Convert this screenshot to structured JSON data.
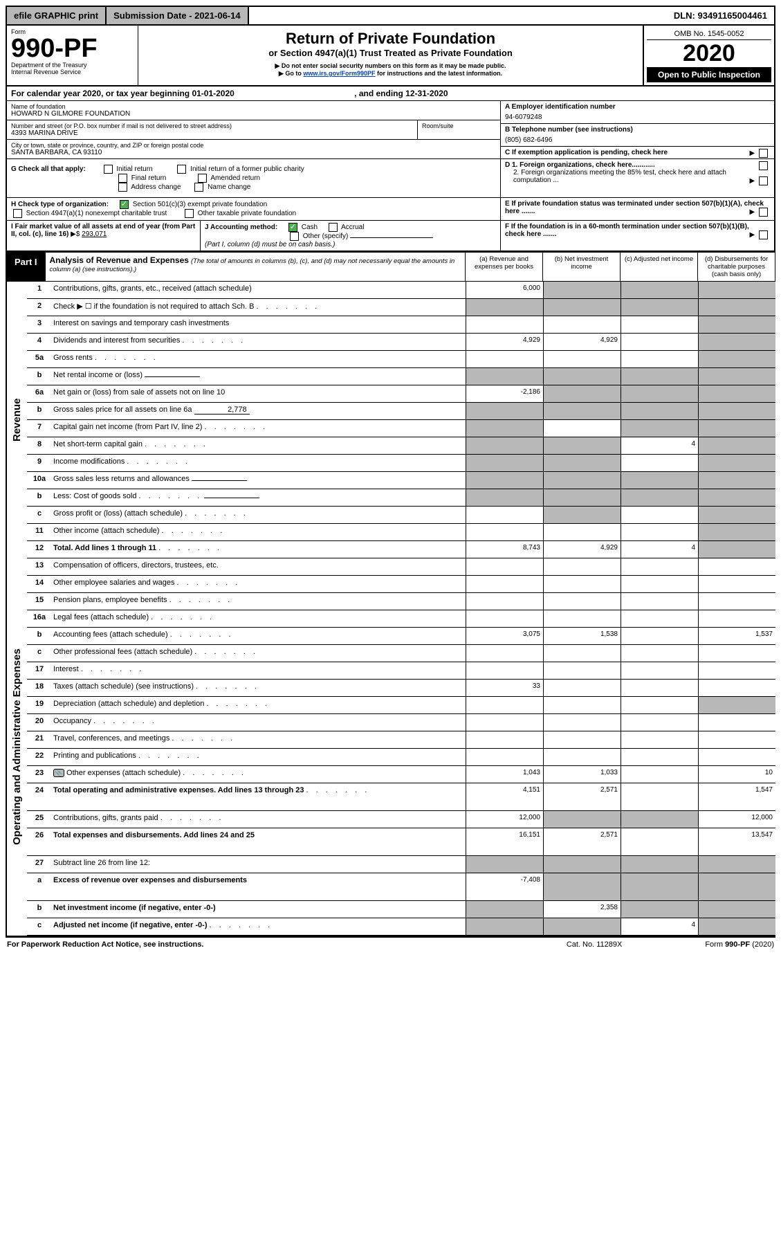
{
  "topbar": {
    "efile": "efile GRAPHIC print",
    "submission": "Submission Date - 2021-06-14",
    "dln": "DLN: 93491165004461"
  },
  "hdr": {
    "form_label": "Form",
    "form_no": "990-PF",
    "dept": "Department of the Treasury\nInternal Revenue Service",
    "title": "Return of Private Foundation",
    "subtitle": "or Section 4947(a)(1) Trust Treated as Private Foundation",
    "note1": "▶ Do not enter social security numbers on this form as it may be made public.",
    "note2_pre": "▶ Go to ",
    "note2_link": "www.irs.gov/Form990PF",
    "note2_post": " for instructions and the latest information.",
    "omb": "OMB No. 1545-0052",
    "year": "2020",
    "open": "Open to Public Inspection"
  },
  "cal": {
    "text": "For calendar year 2020, or tax year beginning 01-01-2020",
    "end": ", and ending 12-31-2020"
  },
  "info": {
    "name_lbl": "Name of foundation",
    "name": "HOWARD N GILMORE FOUNDATION",
    "addr_lbl": "Number and street (or P.O. box number if mail is not delivered to street address)",
    "addr": "4393 MARINA DRIVE",
    "room_lbl": "Room/suite",
    "city_lbl": "City or town, state or province, country, and ZIP or foreign postal code",
    "city": "SANTA BARBARA, CA  93110",
    "a_lbl": "A Employer identification number",
    "a_val": "94-6079248",
    "b_lbl": "B Telephone number (see instructions)",
    "b_val": "(805) 682-6496",
    "c_lbl": "C If exemption application is pending, check here"
  },
  "g": {
    "label": "G Check all that apply:",
    "opts": [
      "Initial return",
      "Initial return of a former public charity",
      "Final return",
      "Amended return",
      "Address change",
      "Name change"
    ]
  },
  "h": {
    "label": "H Check type of organization:",
    "opts": [
      "Section 501(c)(3) exempt private foundation",
      "Section 4947(a)(1) nonexempt charitable trust",
      "Other taxable private foundation"
    ]
  },
  "i": {
    "label": "I Fair market value of all assets at end of year (from Part II, col. (c), line 16)",
    "val": "293,071"
  },
  "j": {
    "label": "J Accounting method:",
    "opts": [
      "Cash",
      "Accrual",
      "Other (specify)"
    ],
    "note": "(Part I, column (d) must be on cash basis.)"
  },
  "d": {
    "d1": "D 1. Foreign organizations, check here............",
    "d2": "2. Foreign organizations meeting the 85% test, check here and attach computation ..."
  },
  "e": {
    "label": "E  If private foundation status was terminated under section 507(b)(1)(A), check here ......."
  },
  "f": {
    "label": "F  If the foundation is in a 60-month termination under section 507(b)(1)(B), check here ......."
  },
  "part1": {
    "tab": "Part I",
    "title": "Analysis of Revenue and Expenses",
    "note": "(The total of amounts in columns (b), (c), and (d) may not necessarily equal the amounts in column (a) (see instructions).)",
    "cols": {
      "a": "(a)   Revenue and expenses per books",
      "b": "(b)   Net investment income",
      "c": "(c)   Adjusted net income",
      "d": "(d)   Disbursements for charitable purposes (cash basis only)"
    }
  },
  "rev_label": "Revenue",
  "exp_label": "Operating and Administrative Expenses",
  "lines": [
    {
      "n": "1",
      "t": "Contributions, gifts, grants, etc., received (attach schedule)",
      "a": "6,000",
      "bgrey": true,
      "cgrey": true,
      "dgrey": true
    },
    {
      "n": "2",
      "t": "Check ▶ ☐ if the foundation is not required to attach Sch. B",
      "dots": true,
      "agrey": true,
      "bgrey": true,
      "cgrey": true,
      "dgrey": true
    },
    {
      "n": "3",
      "t": "Interest on savings and temporary cash investments",
      "dgrey": true
    },
    {
      "n": "4",
      "t": "Dividends and interest from securities",
      "dots": true,
      "a": "4,929",
      "b": "4,929",
      "dgrey": true
    },
    {
      "n": "5a",
      "t": "Gross rents",
      "dots": true,
      "dgrey": true
    },
    {
      "n": "b",
      "t": "Net rental income or (loss)",
      "inline": true,
      "agrey": true,
      "bgrey": true,
      "cgrey": true,
      "dgrey": true
    },
    {
      "n": "6a",
      "t": "Net gain or (loss) from sale of assets not on line 10",
      "a": "-2,186",
      "bgrey": true,
      "cgrey": true,
      "dgrey": true
    },
    {
      "n": "b",
      "t": "Gross sales price for all assets on line 6a",
      "inline": true,
      "inlineval": "2,778",
      "agrey": true,
      "bgrey": true,
      "cgrey": true,
      "dgrey": true
    },
    {
      "n": "7",
      "t": "Capital gain net income (from Part IV, line 2)",
      "dots": true,
      "agrey": true,
      "cgrey": true,
      "dgrey": true
    },
    {
      "n": "8",
      "t": "Net short-term capital gain",
      "dots": true,
      "agrey": true,
      "bgrey": true,
      "c": "4",
      "dgrey": true
    },
    {
      "n": "9",
      "t": "Income modifications",
      "dots": true,
      "agrey": true,
      "bgrey": true,
      "dgrey": true
    },
    {
      "n": "10a",
      "t": "Gross sales less returns and allowances",
      "inline": true,
      "agrey": true,
      "bgrey": true,
      "cgrey": true,
      "dgrey": true
    },
    {
      "n": "b",
      "t": "Less: Cost of goods sold",
      "dots": true,
      "inline": true,
      "agrey": true,
      "bgrey": true,
      "cgrey": true,
      "dgrey": true
    },
    {
      "n": "c",
      "t": "Gross profit or (loss) (attach schedule)",
      "dots": true,
      "bgrey": true,
      "dgrey": true
    },
    {
      "n": "11",
      "t": "Other income (attach schedule)",
      "dots": true,
      "dgrey": true
    },
    {
      "n": "12",
      "t": "Total. Add lines 1 through 11",
      "bold": true,
      "dots": true,
      "a": "8,743",
      "b": "4,929",
      "c": "4",
      "dgrey": true
    }
  ],
  "exp_lines": [
    {
      "n": "13",
      "t": "Compensation of officers, directors, trustees, etc."
    },
    {
      "n": "14",
      "t": "Other employee salaries and wages",
      "dots": true
    },
    {
      "n": "15",
      "t": "Pension plans, employee benefits",
      "dots": true
    },
    {
      "n": "16a",
      "t": "Legal fees (attach schedule)",
      "dots": true
    },
    {
      "n": "b",
      "t": "Accounting fees (attach schedule)",
      "dots": true,
      "a": "3,075",
      "b": "1,538",
      "d": "1,537"
    },
    {
      "n": "c",
      "t": "Other professional fees (attach schedule)",
      "dots": true
    },
    {
      "n": "17",
      "t": "Interest",
      "dots": true
    },
    {
      "n": "18",
      "t": "Taxes (attach schedule) (see instructions)",
      "dots": true,
      "a": "33"
    },
    {
      "n": "19",
      "t": "Depreciation (attach schedule) and depletion",
      "dots": true,
      "dgrey": true
    },
    {
      "n": "20",
      "t": "Occupancy",
      "dots": true
    },
    {
      "n": "21",
      "t": "Travel, conferences, and meetings",
      "dots": true
    },
    {
      "n": "22",
      "t": "Printing and publications",
      "dots": true
    },
    {
      "n": "23",
      "t": "Other expenses (attach schedule)",
      "dots": true,
      "icon": true,
      "a": "1,043",
      "b": "1,033",
      "d": "10"
    },
    {
      "n": "24",
      "t": "Total operating and administrative expenses. Add lines 13 through 23",
      "bold": true,
      "dots": true,
      "a": "4,151",
      "b": "2,571",
      "d": "1,547",
      "tall": true
    },
    {
      "n": "25",
      "t": "Contributions, gifts, grants paid",
      "dots": true,
      "a": "12,000",
      "bgrey": true,
      "cgrey": true,
      "d": "12,000"
    },
    {
      "n": "26",
      "t": "Total expenses and disbursements. Add lines 24 and 25",
      "bold": true,
      "a": "16,151",
      "b": "2,571",
      "d": "13,547",
      "tall": true
    },
    {
      "n": "27",
      "t": "Subtract line 26 from line 12:",
      "agrey": true,
      "bgrey": true,
      "cgrey": true,
      "dgrey": true
    },
    {
      "n": "a",
      "t": "Excess of revenue over expenses and disbursements",
      "bold": true,
      "a": "-7,408",
      "bgrey": true,
      "cgrey": true,
      "dgrey": true,
      "tall": true
    },
    {
      "n": "b",
      "t": "Net investment income (if negative, enter -0-)",
      "bold": true,
      "agrey": true,
      "b": "2,358",
      "cgrey": true,
      "dgrey": true
    },
    {
      "n": "c",
      "t": "Adjusted net income (if negative, enter -0-)",
      "bold": true,
      "dots": true,
      "agrey": true,
      "bgrey": true,
      "c": "4",
      "dgrey": true
    }
  ],
  "footer": {
    "l": "For Paperwork Reduction Act Notice, see instructions.",
    "m": "Cat. No. 11289X",
    "r": "Form 990-PF (2020)"
  }
}
